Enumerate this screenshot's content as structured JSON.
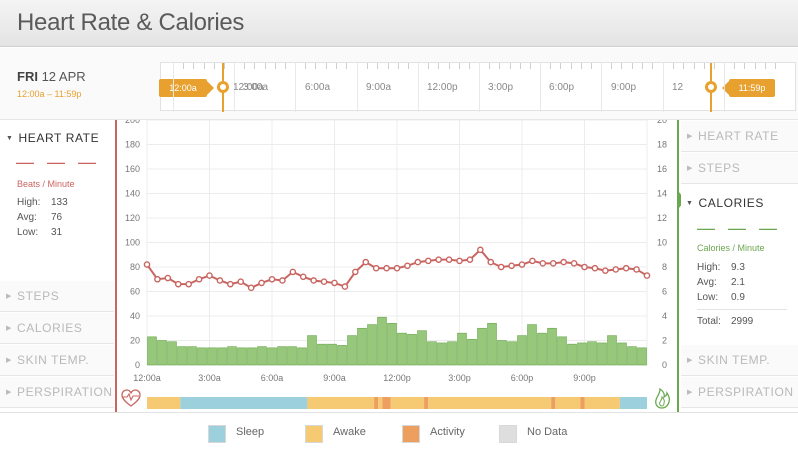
{
  "header": {
    "title": "Heart Rate & Calories"
  },
  "date": {
    "day": "FRI",
    "date": "12 APR",
    "range": "12:00a – 11:59p"
  },
  "timeline": {
    "labels": [
      "12:00a",
      "3:00a",
      "6:00a",
      "9:00a",
      "12:00p",
      "3:00p",
      "6:00p",
      "9:00p",
      "12"
    ],
    "start_handle": "12:00a",
    "end_handle": "11:59p"
  },
  "left_panel": {
    "active": {
      "label": "HEART RATE",
      "dashes": "— — —",
      "unit": "Beats / Minute",
      "stats": [
        {
          "k": "High:",
          "v": "133"
        },
        {
          "k": "Avg:",
          "v": "76"
        },
        {
          "k": "Low:",
          "v": "31"
        }
      ]
    },
    "items": [
      "STEPS",
      "CALORIES",
      "SKIN TEMP.",
      "PERSPIRATION"
    ]
  },
  "right_panel": {
    "items_top": [
      "HEART RATE",
      "STEPS"
    ],
    "active": {
      "label": "CALORIES",
      "dashes": "— — —",
      "unit": "Calories / Minute",
      "stats": [
        {
          "k": "High:",
          "v": "9.3"
        },
        {
          "k": "Avg:",
          "v": "2.1"
        },
        {
          "k": "Low:",
          "v": "0.9"
        }
      ],
      "total_label": "Total:",
      "total_value": "2999"
    },
    "items_bottom": [
      "SKIN TEMP.",
      "PERSPIRATION"
    ]
  },
  "colors": {
    "heart": "#c96561",
    "calories_bar": "#97c77a",
    "calories_edge": "#6aa84f",
    "sleep": "#9bd0dc",
    "awake": "#f6ca72",
    "activity": "#ec9f5e",
    "nodata": "#dedede",
    "accent": "#e8a12f"
  },
  "chart_data": {
    "type": "line+bar",
    "left_axis": {
      "ticks": [
        "0",
        "20",
        "40",
        "60",
        "80",
        "100",
        "120",
        "140",
        "160",
        "180",
        "200"
      ],
      "ylim": [
        0,
        200
      ]
    },
    "right_axis": {
      "ticks": [
        "0",
        "2",
        "4",
        "6",
        "8",
        "10",
        "12",
        "14",
        "16",
        "18",
        "20"
      ],
      "ylim": [
        0,
        20
      ]
    },
    "x_labels": [
      "12:00a",
      "3:00a",
      "6:00a",
      "9:00a",
      "12:00p",
      "3:00p",
      "6:00p",
      "9:00p"
    ],
    "heart_rate": [
      82,
      70,
      71,
      66,
      66,
      70,
      73,
      69,
      66,
      68,
      63,
      67,
      70,
      69,
      76,
      72,
      69,
      68,
      67,
      64,
      76,
      84,
      79,
      79,
      79,
      81,
      84,
      85,
      86,
      86,
      85,
      86,
      94,
      84,
      80,
      81,
      82,
      85,
      83,
      83,
      84,
      83,
      80,
      79,
      77,
      78,
      79,
      78,
      73
    ],
    "calories": [
      2.3,
      2.0,
      1.9,
      1.5,
      1.5,
      1.4,
      1.4,
      1.4,
      1.5,
      1.4,
      1.4,
      1.5,
      1.4,
      1.5,
      1.5,
      1.4,
      2.4,
      1.7,
      1.7,
      1.6,
      2.4,
      3.0,
      3.3,
      3.9,
      3.4,
      2.6,
      2.5,
      2.8,
      1.9,
      1.8,
      1.9,
      2.6,
      2.1,
      3.0,
      3.4,
      2.0,
      1.9,
      2.4,
      3.3,
      2.6,
      3.0,
      2.3,
      1.7,
      1.8,
      1.9,
      1.8,
      2.4,
      1.8,
      1.5,
      1.4
    ],
    "activity_band": [
      {
        "state": "awake",
        "start_hour": 0,
        "end_hour": 1.6
      },
      {
        "state": "sleep",
        "start_hour": 1.6,
        "end_hour": 7.7
      },
      {
        "state": "awake",
        "start_hour": 7.7,
        "end_hour": 10.9
      },
      {
        "state": "activity",
        "start_hour": 10.9,
        "end_hour": 11.1
      },
      {
        "state": "awake",
        "start_hour": 11.1,
        "end_hour": 11.3
      },
      {
        "state": "activity",
        "start_hour": 11.3,
        "end_hour": 11.7
      },
      {
        "state": "awake",
        "start_hour": 11.7,
        "end_hour": 13.3
      },
      {
        "state": "activity",
        "start_hour": 13.3,
        "end_hour": 13.5
      },
      {
        "state": "awake",
        "start_hour": 13.5,
        "end_hour": 19.4
      },
      {
        "state": "activity",
        "start_hour": 19.4,
        "end_hour": 19.6
      },
      {
        "state": "awake",
        "start_hour": 19.6,
        "end_hour": 20.8
      },
      {
        "state": "activity",
        "start_hour": 20.8,
        "end_hour": 21.0
      },
      {
        "state": "awake",
        "start_hour": 21.0,
        "end_hour": 22.7
      },
      {
        "state": "sleep",
        "start_hour": 22.7,
        "end_hour": 24
      }
    ]
  },
  "legend": [
    {
      "label": "Sleep",
      "color": "#9bd0dc"
    },
    {
      "label": "Awake",
      "color": "#f6ca72"
    },
    {
      "label": "Activity",
      "color": "#ec9f5e"
    },
    {
      "label": "No Data",
      "color": "#dedede"
    }
  ]
}
